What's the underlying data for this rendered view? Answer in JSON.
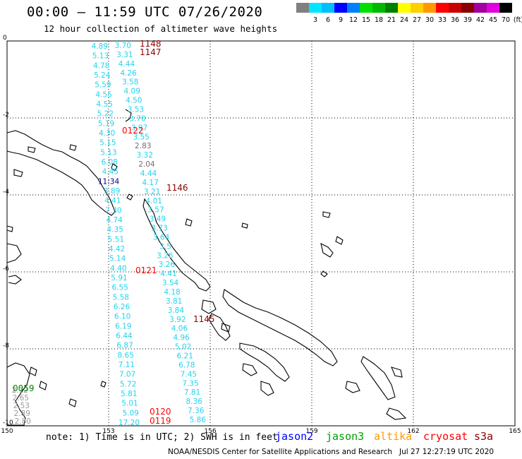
{
  "title": "00:00 – 11:59 UTC 07/26/2020",
  "subtitle": "12 hour collection of altimeter wave heights",
  "scale": {
    "unit": "(ft)",
    "levels": [
      {
        "label": "",
        "color": "#808080"
      },
      {
        "label": "3",
        "color": "#00e5ff"
      },
      {
        "label": "6",
        "color": "#00bfff"
      },
      {
        "label": "9",
        "color": "#0000ff"
      },
      {
        "label": "12",
        "color": "#0080ff"
      },
      {
        "label": "15",
        "color": "#00e000"
      },
      {
        "label": "18",
        "color": "#00b800"
      },
      {
        "label": "21",
        "color": "#008000"
      },
      {
        "label": "24",
        "color": "#ffff00"
      },
      {
        "label": "27",
        "color": "#ffd000"
      },
      {
        "label": "30",
        "color": "#ff9900"
      },
      {
        "label": "33",
        "color": "#ff0000"
      },
      {
        "label": "36",
        "color": "#c80000"
      },
      {
        "label": "39",
        "color": "#8b0000"
      },
      {
        "label": "42",
        "color": "#a000a0"
      },
      {
        "label": "45",
        "color": "#e000e0"
      },
      {
        "label": "70",
        "color": "#000000"
      }
    ]
  },
  "map": {
    "lat_ticks": [
      "0",
      "-2",
      "-4",
      "-6",
      "-8",
      "-10"
    ],
    "lon_ticks": [
      "150",
      "153",
      "156",
      "159",
      "162",
      "165"
    ],
    "lat_range": [
      -10,
      0
    ],
    "lon_range": [
      150,
      165
    ],
    "time_labels": [
      {
        "text": "1148",
        "color": "#8b0000"
      },
      {
        "text": "1147",
        "color": "#8b0000"
      },
      {
        "text": "0122",
        "color": "#ff0000"
      },
      {
        "text": "1146",
        "color": "#8b0000"
      },
      {
        "text": "0121",
        "color": "#ff0000"
      },
      {
        "text": "1145",
        "color": "#8b0000"
      },
      {
        "text": "0120",
        "color": "#ff0000"
      },
      {
        "text": "0119",
        "color": "#ff0000"
      },
      {
        "text": "11:34",
        "color": "#00008b"
      },
      {
        "text": "0059",
        "color": "#008000"
      }
    ],
    "track_west": [
      "4.89",
      "5.13",
      "4.78",
      "5.24",
      "5.59",
      "4.55",
      "4.55",
      "5.22",
      "5.19",
      "4.30",
      "5.15",
      "5.13",
      "6.08",
      "4.45",
      "11:34",
      "3.89",
      "4.41",
      "7.30",
      "4.74",
      "4.35",
      "5.51",
      "4.42",
      "5.14",
      "4.40",
      "5.91",
      "6.55",
      "5.58",
      "6.26",
      "6.10",
      "6.19",
      "6.44",
      "6.87",
      "8.65",
      "7.11",
      "7.07",
      "5.72",
      "5.81",
      "5.01",
      "5.09",
      "17.20"
    ],
    "track_east": [
      "3.70",
      "3.31",
      "4.44",
      "4.26",
      "3.58",
      "4.09",
      "4.50",
      "3.53",
      "3.70",
      "3.97",
      "3.55",
      "2.83",
      "3.32",
      "2.04",
      "4.44",
      "4.17",
      "3.21",
      "4.01",
      "3.57",
      "3.49",
      "3.73",
      "3.64",
      "3.5",
      "3.26",
      "3.26",
      "4.41",
      "3.54",
      "4.18",
      "3.81",
      "3.84",
      "3.92",
      "4.06",
      "4.96",
      "5.02",
      "6.21",
      "6.78",
      "7.45",
      "7.35",
      "7.81",
      "8.36",
      "7.36",
      "5.86"
    ],
    "track_gray": [
      "2.12",
      "2.65",
      "2.53",
      "2.89",
      "2.80"
    ]
  },
  "legend": {
    "note": "note: 1) Time is in UTC; 2) SWH is in feet",
    "satellites": [
      {
        "name": "jason2",
        "color": "#0000ff"
      },
      {
        "name": "jason3",
        "color": "#00a000"
      },
      {
        "name": "altika",
        "color": "#ff9900"
      },
      {
        "name": "cryosat",
        "color": "#ff0000"
      },
      {
        "name": "s3a",
        "color": "#8b0000"
      }
    ]
  },
  "credit": "NOAA/NESDIS Center for Satellite Applications and Research",
  "generated": "Jul 27 12:27:19 UTC 2020"
}
